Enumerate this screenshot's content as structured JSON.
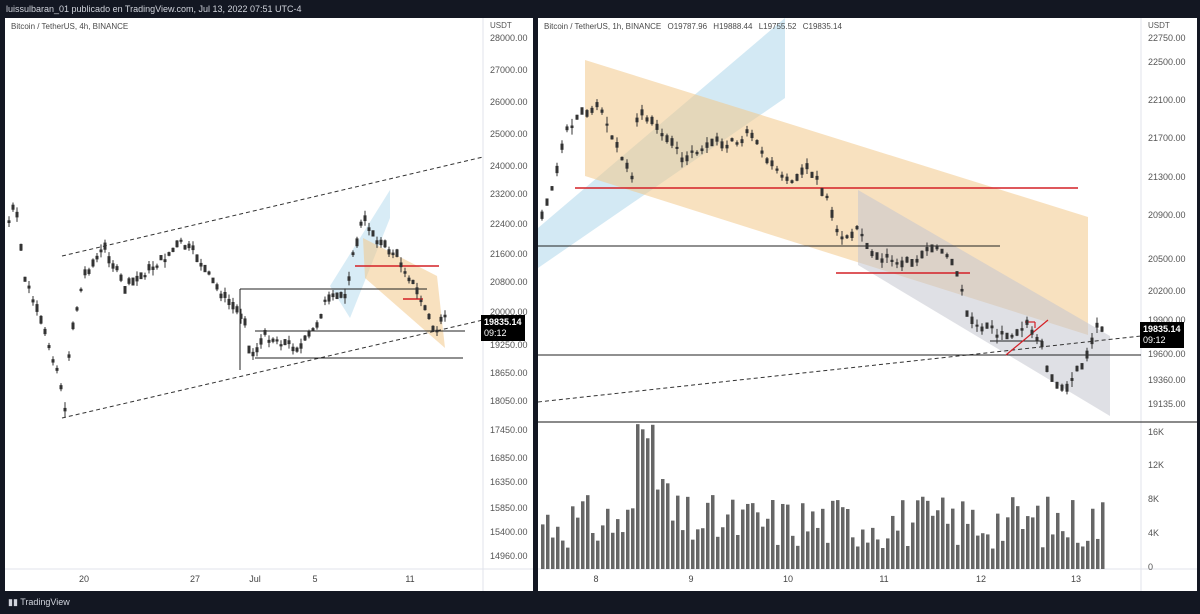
{
  "header": {
    "publish_line": "luissulbaran_01 publicado en TradingView.com, Jul 13, 2022 07:51 UTC-4"
  },
  "footer": {
    "brand": "TradingView"
  },
  "left_chart": {
    "symbol_line": "Bitcoin / TetherUS, 4h, BINANCE",
    "currency": "USDT",
    "y_ticks": [
      "28000.00",
      "27000.00",
      "26000.00",
      "25000.00",
      "24000.00",
      "23200.00",
      "22400.00",
      "21600.00",
      "20800.00",
      "20000.00",
      "19250.00",
      "18650.00",
      "18050.00",
      "17450.00",
      "16850.00",
      "16350.00",
      "15850.00",
      "15400.00",
      "14960.00"
    ],
    "x_ticks": [
      "20",
      "27",
      "Jul",
      "5",
      "11"
    ],
    "price_tag": "19835.14",
    "countdown": "09:12"
  },
  "right_chart": {
    "symbol_line": "Bitcoin / TetherUS, 1h, BINANCE",
    "ohlc": {
      "open": "O19787.96",
      "high": "H19888.44",
      "low": "L19755.52",
      "close": "C19835.14"
    },
    "currency": "USDT",
    "y_ticks": [
      "22750.00",
      "22500.00",
      "22100.00",
      "21700.00",
      "21300.00",
      "20900.00",
      "20500.00",
      "20200.00",
      "19900.00",
      "19600.00",
      "19360.00",
      "19135.00"
    ],
    "volume_ticks": [
      "16K",
      "12K",
      "8K",
      "4K",
      "0"
    ],
    "x_ticks": [
      "8",
      "9",
      "10",
      "11",
      "12",
      "13"
    ],
    "price_tag": "19835.14",
    "countdown": "09:12"
  },
  "colors": {
    "background": "#131722",
    "panel": "#ffffff",
    "support_line": "#d42027",
    "bear_channel": "#f3c98b",
    "bull_channel": "#a8d4ea",
    "down_channel": "#c4c7cf",
    "candles": "#333333",
    "volume": "#666666"
  }
}
